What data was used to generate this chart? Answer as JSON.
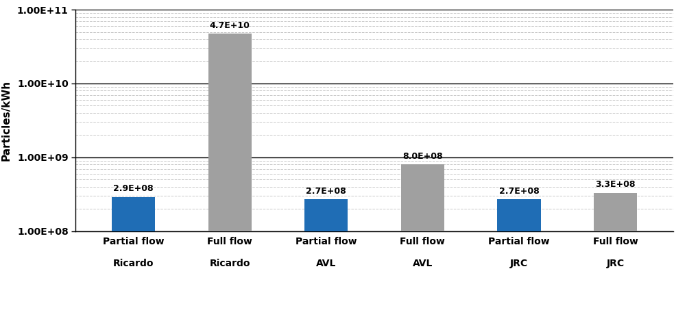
{
  "categories": [
    "Partial flow\n\nRicardo",
    "Full flow\n\nRicardo",
    "Partial flow\n\nAVL",
    "Full flow\n\nAVL",
    "Partial flow\n\nJRC",
    "Full flow\n\nJRC"
  ],
  "values": [
    290000000.0,
    47000000000.0,
    270000000.0,
    800000000.0,
    270000000.0,
    330000000.0
  ],
  "labels": [
    "2.9E+08",
    "4.7E+10",
    "2.7E+08",
    "8.0E+08",
    "2.7E+08",
    "3.3E+08"
  ],
  "bar_colors": [
    "#1f6db5",
    "#a0a0a0",
    "#1f6db5",
    "#a0a0a0",
    "#1f6db5",
    "#a0a0a0"
  ],
  "ylabel": "Particles/kWh",
  "ylim_log": [
    100000000.0,
    100000000000.0
  ],
  "yticks": [
    100000000.0,
    1000000000.0,
    10000000000.0,
    100000000000.0
  ],
  "ytick_labels": [
    "1.00E+08",
    "1.00E+09",
    "1.00E+10",
    "1.00E+11"
  ],
  "background_color": "#ffffff",
  "minor_grid_color": "#c8c8c8",
  "major_grid_color": "#000000",
  "bar_edge_color": "none"
}
